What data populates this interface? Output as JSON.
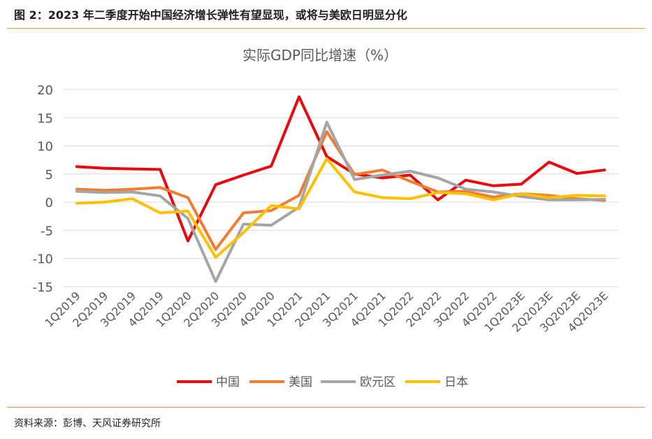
{
  "figure_title": "图 2：2023 年二季度开始中国经济增长弹性有望显现，或将与美欧日明显分化",
  "source": "资料来源：彭博、天风证券研究所",
  "colors": {
    "accent": "#e8913a"
  },
  "chart_data": {
    "type": "line",
    "title": "实际GDP同比增速（%）",
    "categories": [
      "1Q2019",
      "2Q2019",
      "3Q2019",
      "4Q2019",
      "1Q2020",
      "2Q2020",
      "3Q2020",
      "4Q2020",
      "1Q2021",
      "2Q2021",
      "3Q2021",
      "4Q2021",
      "1Q2022",
      "2Q2022",
      "3Q2022",
      "4Q2022",
      "1Q2023E",
      "2Q2023E",
      "3Q2023E",
      "4Q2023E"
    ],
    "ylim": [
      -15,
      20
    ],
    "yticks": [
      20,
      15,
      10,
      5,
      0,
      -5,
      -10,
      -15
    ],
    "grid": true,
    "legend": "bottom",
    "series": [
      {
        "name": "中国",
        "color": "#e8090c",
        "values": [
          6.3,
          6.0,
          5.9,
          5.8,
          -6.9,
          3.1,
          4.8,
          6.4,
          18.7,
          8.1,
          5.0,
          4.3,
          4.8,
          0.4,
          3.9,
          2.9,
          3.2,
          7.1,
          5.1,
          5.7
        ]
      },
      {
        "name": "美国",
        "color": "#ef7e33",
        "values": [
          2.3,
          2.1,
          2.3,
          2.6,
          0.8,
          -8.4,
          -1.9,
          -1.5,
          1.2,
          12.5,
          4.9,
          5.7,
          3.7,
          1.8,
          1.9,
          0.9,
          1.5,
          1.2,
          0.6,
          0.3
        ]
      },
      {
        "name": "欧元区",
        "color": "#a5a5a5",
        "values": [
          1.9,
          1.7,
          1.8,
          1.1,
          -2.9,
          -14.1,
          -3.9,
          -4.1,
          -0.9,
          14.2,
          4.0,
          4.8,
          5.5,
          4.3,
          2.3,
          1.8,
          1.0,
          0.4,
          0.4,
          0.5
        ]
      },
      {
        "name": "日本",
        "color": "#ffc000",
        "values": [
          -0.2,
          0.0,
          0.6,
          -1.9,
          -1.6,
          -9.8,
          -5.4,
          -0.6,
          -1.2,
          7.7,
          1.8,
          0.8,
          0.6,
          1.7,
          1.5,
          0.4,
          1.5,
          0.8,
          1.2,
          1.1
        ]
      }
    ]
  }
}
